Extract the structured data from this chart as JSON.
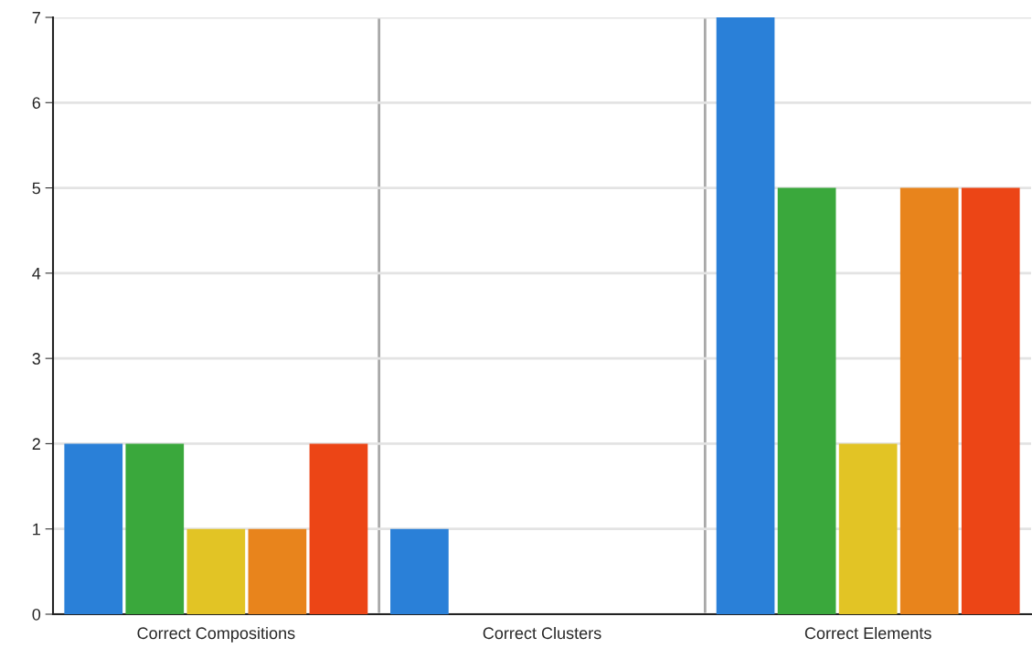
{
  "chart_data": {
    "type": "bar",
    "categories": [
      "Correct Compositions",
      "Correct Clusters",
      "Correct Elements"
    ],
    "series": [
      {
        "color": "#2a80d8",
        "values": [
          2,
          1,
          7
        ]
      },
      {
        "color": "#3aa83c",
        "values": [
          2,
          0,
          5
        ]
      },
      {
        "color": "#e2c425",
        "values": [
          1,
          0,
          2
        ]
      },
      {
        "color": "#e8841c",
        "values": [
          1,
          0,
          5
        ]
      },
      {
        "color": "#ec4516",
        "values": [
          2,
          0,
          5
        ]
      }
    ],
    "ylim": [
      0,
      7
    ],
    "yticks": [
      0,
      1,
      2,
      3,
      4,
      5,
      6,
      7
    ],
    "grid": "y"
  }
}
